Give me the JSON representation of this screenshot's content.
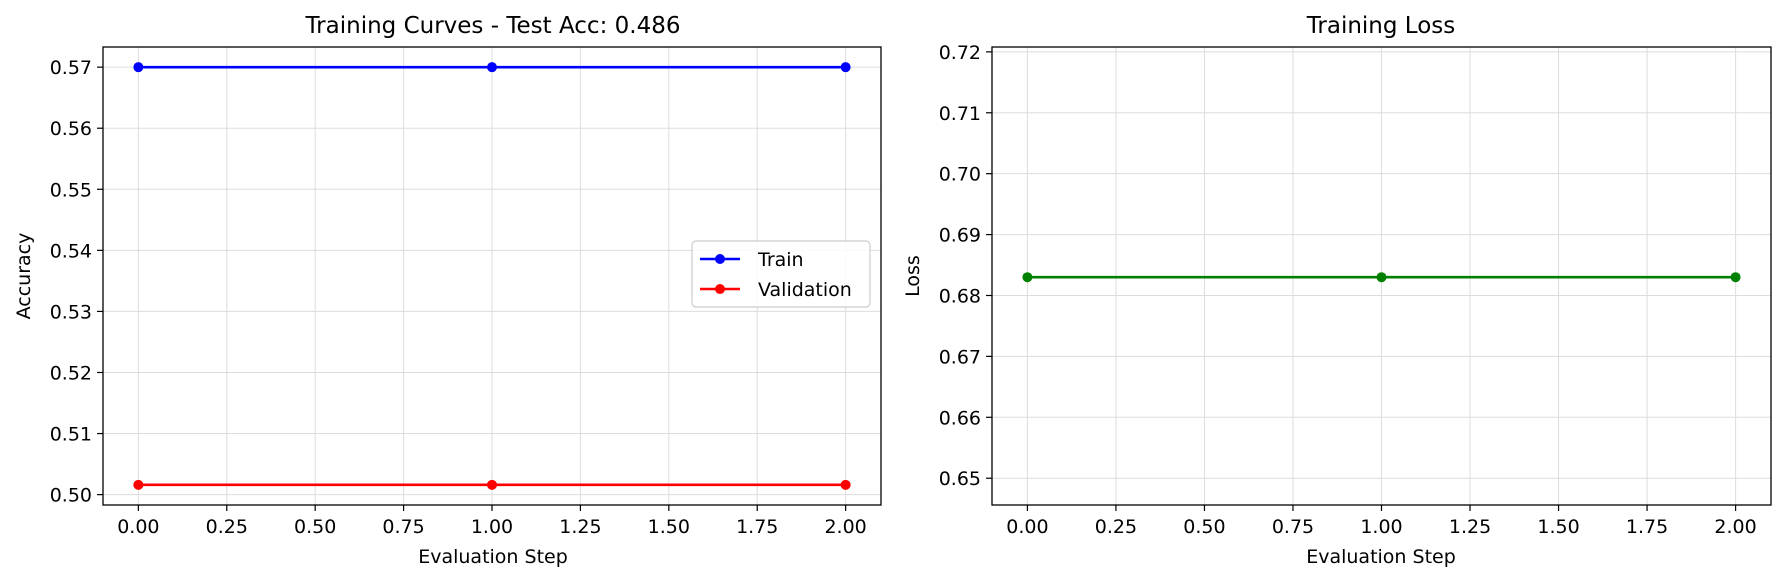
{
  "chart_data": [
    {
      "type": "line",
      "title": "Training Curves - Test Acc: 0.486",
      "xlabel": "Evaluation Step",
      "ylabel": "Accuracy",
      "x": [
        0,
        1,
        2
      ],
      "xlim": [
        -0.1,
        2.1
      ],
      "ylim": [
        0.4983,
        0.5733
      ],
      "xticks": [
        0,
        0.25,
        0.5,
        0.75,
        1.0,
        1.25,
        1.5,
        1.75,
        2.0
      ],
      "xtick_labels": [
        "0.00",
        "0.25",
        "0.50",
        "0.75",
        "1.00",
        "1.25",
        "1.50",
        "1.75",
        "2.00"
      ],
      "yticks": [
        0.5,
        0.51,
        0.52,
        0.53,
        0.54,
        0.55,
        0.56,
        0.57
      ],
      "ytick_labels": [
        "0.50",
        "0.51",
        "0.52",
        "0.53",
        "0.54",
        "0.55",
        "0.56",
        "0.57"
      ],
      "grid": true,
      "legend": "center-right",
      "series": [
        {
          "name": "Train",
          "color": "#0000ff",
          "values": [
            0.57,
            0.57,
            0.57
          ]
        },
        {
          "name": "Validation",
          "color": "#ff0000",
          "values": [
            0.5016,
            0.5016,
            0.5016
          ]
        }
      ]
    },
    {
      "type": "line",
      "title": "Training Loss",
      "xlabel": "Evaluation Step",
      "ylabel": "Loss",
      "x": [
        0,
        1,
        2
      ],
      "xlim": [
        -0.1,
        2.1
      ],
      "ylim": [
        0.6456,
        0.7208
      ],
      "xticks": [
        0,
        0.25,
        0.5,
        0.75,
        1.0,
        1.25,
        1.5,
        1.75,
        2.0
      ],
      "xtick_labels": [
        "0.00",
        "0.25",
        "0.50",
        "0.75",
        "1.00",
        "1.25",
        "1.50",
        "1.75",
        "2.00"
      ],
      "yticks": [
        0.65,
        0.66,
        0.67,
        0.68,
        0.69,
        0.7,
        0.71,
        0.72
      ],
      "ytick_labels": [
        "0.65",
        "0.66",
        "0.67",
        "0.68",
        "0.69",
        "0.70",
        "0.71",
        "0.72"
      ],
      "grid": true,
      "series": [
        {
          "color": "#008000",
          "values": [
            0.683,
            0.683,
            0.683
          ]
        }
      ]
    }
  ]
}
